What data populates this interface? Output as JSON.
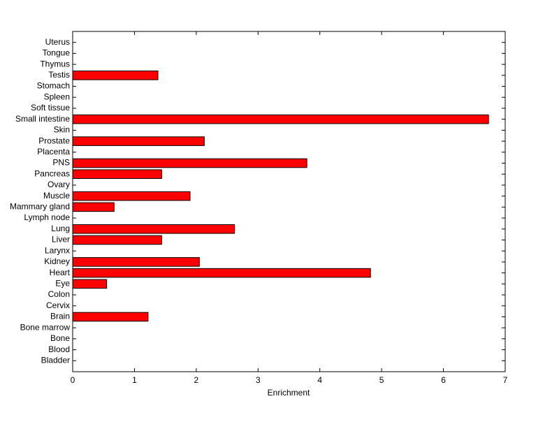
{
  "chart_data": {
    "type": "barh",
    "xlabel": "Enrichment",
    "categories": [
      "Bladder",
      "Blood",
      "Bone",
      "Bone marrow",
      "Brain",
      "Cervix",
      "Colon",
      "Eye",
      "Heart",
      "Kidney",
      "Larynx",
      "Liver",
      "Lung",
      "Lymph node",
      "Mammary gland",
      "Muscle",
      "Ovary",
      "Pancreas",
      "PNS",
      "Placenta",
      "Prostate",
      "Skin",
      "Small intestine",
      "Soft tissue",
      "Spleen",
      "Stomach",
      "Testis",
      "Thymus",
      "Tongue",
      "Uterus"
    ],
    "values": [
      0,
      0,
      0,
      0,
      1.22,
      0,
      0,
      0.55,
      4.82,
      2.05,
      0,
      1.44,
      2.62,
      0,
      0.67,
      1.9,
      0,
      1.44,
      3.79,
      0,
      2.13,
      0,
      6.73,
      0,
      0,
      0,
      1.38,
      0,
      0,
      0
    ],
    "color": "#ff0000",
    "xlim": [
      0,
      7
    ],
    "xticks": [
      0,
      1,
      2,
      3,
      4,
      5,
      6,
      7
    ]
  }
}
